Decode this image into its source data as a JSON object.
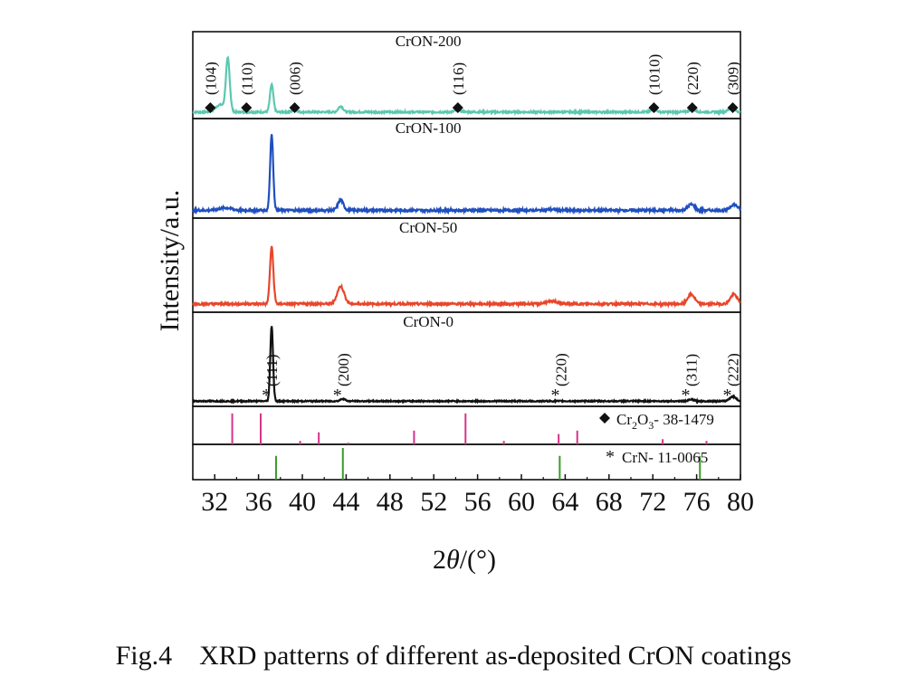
{
  "chart_data": {
    "type": "line",
    "xlabel": "2θ/(°)",
    "ylabel": "Intensity/a.u.",
    "xlim": [
      30,
      80
    ],
    "xticks": [
      32,
      36,
      40,
      44,
      48,
      52,
      56,
      60,
      64,
      68,
      72,
      76,
      80
    ],
    "grid": false,
    "series": [
      {
        "name": "CrON-200",
        "color": "#5bc8b0",
        "ylim": [
          0,
          1.1
        ],
        "baseline": 0.04,
        "noise": 0.012,
        "peaks": [
          {
            "x": 33.2,
            "h": 0.72,
            "w": 0.25
          },
          {
            "x": 32.5,
            "h": 0.1,
            "w": 0.6
          },
          {
            "x": 37.2,
            "h": 0.38,
            "w": 0.22
          },
          {
            "x": 39.3,
            "h": 0.03,
            "w": 0.3
          },
          {
            "x": 43.5,
            "h": 0.08,
            "w": 0.3
          },
          {
            "x": 54.2,
            "h": 0.03,
            "w": 0.4
          },
          {
            "x": 72.1,
            "h": 0.03,
            "w": 0.4
          },
          {
            "x": 75.6,
            "h": 0.04,
            "w": 0.4
          },
          {
            "x": 79.2,
            "h": 0.06,
            "w": 0.4
          }
        ],
        "annotations": [
          {
            "x": 31.6,
            "label": "(104)",
            "marker": "◆"
          },
          {
            "x": 34.9,
            "label": "(110)",
            "marker": "◆"
          },
          {
            "x": 39.3,
            "label": "(006)",
            "marker": "◆"
          },
          {
            "x": 54.2,
            "label": "(116)",
            "marker": "◆"
          },
          {
            "x": 72.1,
            "label": "(1010)",
            "marker": "◆"
          },
          {
            "x": 75.6,
            "label": "(220)",
            "marker": "◆"
          },
          {
            "x": 79.3,
            "label": "(309)",
            "marker": "◆"
          }
        ]
      },
      {
        "name": "CrON-100",
        "color": "#1f4fbf",
        "ylim": [
          0,
          1.1
        ],
        "baseline": 0.05,
        "noise": 0.014,
        "peaks": [
          {
            "x": 37.2,
            "h": 0.9,
            "w": 0.2
          },
          {
            "x": 33.0,
            "h": 0.03,
            "w": 0.8
          },
          {
            "x": 43.5,
            "h": 0.12,
            "w": 0.35
          },
          {
            "x": 62.7,
            "h": 0.01,
            "w": 0.6
          },
          {
            "x": 75.5,
            "h": 0.07,
            "w": 0.45
          },
          {
            "x": 79.4,
            "h": 0.07,
            "w": 0.45
          }
        ]
      },
      {
        "name": "CrON-50",
        "color": "#e8462a",
        "ylim": [
          0,
          1.1
        ],
        "baseline": 0.06,
        "noise": 0.013,
        "peaks": [
          {
            "x": 37.2,
            "h": 0.72,
            "w": 0.22
          },
          {
            "x": 43.5,
            "h": 0.22,
            "w": 0.45
          },
          {
            "x": 62.8,
            "h": 0.03,
            "w": 0.8
          },
          {
            "x": 75.5,
            "h": 0.12,
            "w": 0.45
          },
          {
            "x": 79.4,
            "h": 0.12,
            "w": 0.45
          }
        ]
      },
      {
        "name": "CrON-0",
        "color": "#111111",
        "ylim": [
          0,
          1.1
        ],
        "baseline": 0.02,
        "noise": 0.008,
        "peaks": [
          {
            "x": 37.2,
            "h": 0.95,
            "w": 0.18
          },
          {
            "x": 43.7,
            "h": 0.03,
            "w": 0.3
          },
          {
            "x": 75.5,
            "h": 0.02,
            "w": 0.35
          },
          {
            "x": 79.3,
            "h": 0.06,
            "w": 0.4
          }
        ],
        "annotations": [
          {
            "x": 37.2,
            "label": "(111)",
            "marker": "*"
          },
          {
            "x": 43.7,
            "label": "(200)",
            "marker": "*"
          },
          {
            "x": 63.6,
            "label": "(220)",
            "marker": "*"
          },
          {
            "x": 75.5,
            "label": "(311)",
            "marker": "*"
          },
          {
            "x": 79.3,
            "label": "(222)",
            "marker": "*"
          }
        ]
      }
    ],
    "references": [
      {
        "legend_marker": "◆",
        "legend_parts": [
          "Cr",
          "2",
          "O",
          "3",
          "- 38-1479"
        ],
        "color": "#d6338a",
        "lines": [
          {
            "x": 33.6,
            "h": 0.9
          },
          {
            "x": 36.2,
            "h": 0.9
          },
          {
            "x": 39.8,
            "h": 0.1
          },
          {
            "x": 41.5,
            "h": 0.35
          },
          {
            "x": 44.2,
            "h": 0.05
          },
          {
            "x": 50.2,
            "h": 0.4
          },
          {
            "x": 54.9,
            "h": 0.9
          },
          {
            "x": 58.4,
            "h": 0.1
          },
          {
            "x": 63.4,
            "h": 0.3
          },
          {
            "x": 65.1,
            "h": 0.4
          },
          {
            "x": 72.9,
            "h": 0.15
          },
          {
            "x": 76.9,
            "h": 0.1
          }
        ]
      },
      {
        "legend_marker": "*",
        "legend_text": "CrN- 11-0065",
        "color": "#3a9a2a",
        "lines": [
          {
            "x": 37.6,
            "h": 0.75
          },
          {
            "x": 43.7,
            "h": 1.0
          },
          {
            "x": 63.5,
            "h": 0.75
          },
          {
            "x": 76.3,
            "h": 0.75
          }
        ]
      }
    ]
  },
  "caption": "Fig.4    XRD patterns of different as-deposited CrON coatings"
}
